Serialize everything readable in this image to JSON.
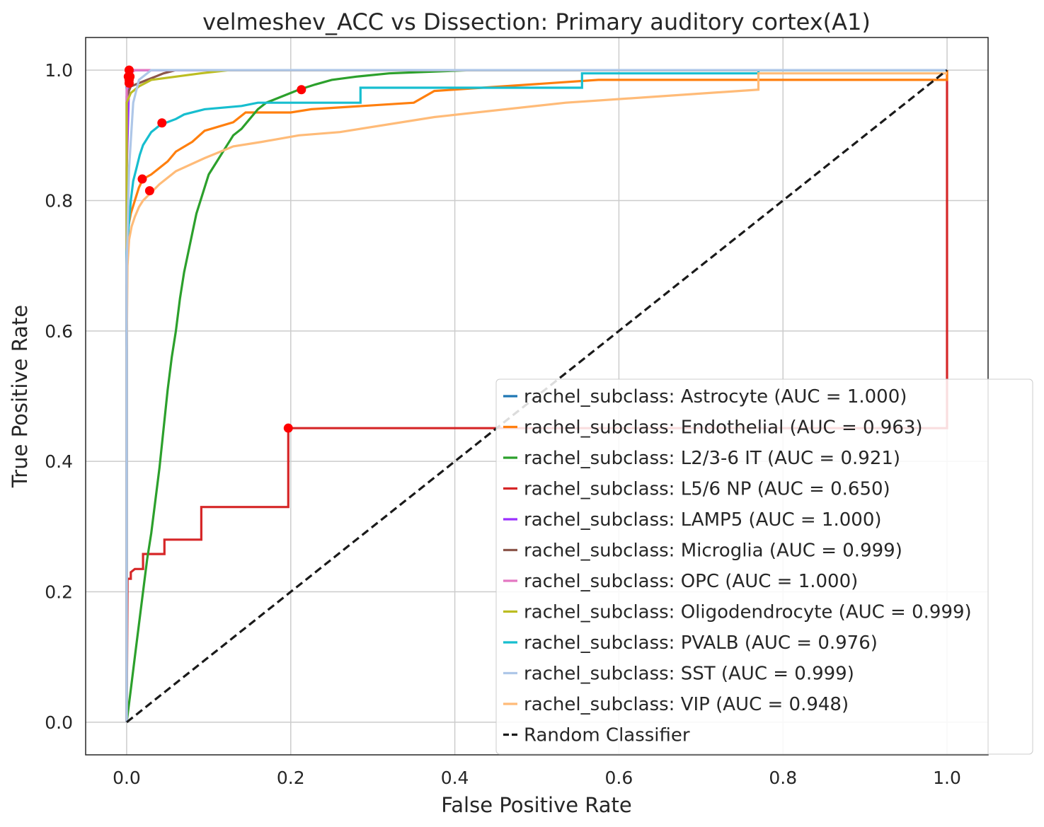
{
  "chart_data": {
    "type": "line",
    "title": "velmeshev_ACC vs Dissection: Primary auditory cortex(A1)",
    "xlabel": "False Positive Rate",
    "ylabel": "True Positive Rate",
    "xlim": [
      -0.05,
      1.05
    ],
    "ylim": [
      -0.05,
      1.05
    ],
    "xticks": [
      "0.0",
      "0.2",
      "0.4",
      "0.6",
      "0.8",
      "1.0"
    ],
    "yticks": [
      "0.0",
      "0.2",
      "0.4",
      "0.6",
      "0.8",
      "1.0"
    ],
    "grid": true,
    "legend_position": "lower-right",
    "series": [
      {
        "name": "rachel_subclass: Astrocyte (AUC = 1.000)",
        "color": "#1f77b4",
        "x": [
          0,
          0,
          0.003,
          1
        ],
        "y": [
          0,
          0.985,
          1.0,
          1.0
        ],
        "marker": [
          0.003,
          1.0
        ]
      },
      {
        "name": "rachel_subclass: Endothelial (AUC = 0.963)",
        "color": "#ff7f0e",
        "x": [
          0,
          0,
          0.001,
          0.002,
          0.005,
          0.01,
          0.015,
          0.02,
          0.03,
          0.04,
          0.05,
          0.06,
          0.08,
          0.095,
          0.13,
          0.145,
          0.2,
          0.225,
          0.225,
          0.35,
          0.35,
          0.375,
          0.375,
          0.575,
          0.575,
          1.0,
          1.0
        ],
        "y": [
          0,
          0.67,
          0.72,
          0.76,
          0.78,
          0.8,
          0.82,
          0.833,
          0.84,
          0.85,
          0.86,
          0.875,
          0.89,
          0.907,
          0.92,
          0.935,
          0.935,
          0.94,
          0.94,
          0.95,
          0.95,
          0.968,
          0.968,
          0.985,
          0.985,
          0.985,
          1.0
        ],
        "marker": [
          0.019,
          0.833
        ]
      },
      {
        "name": "rachel_subclass: L2/3-6 IT (AUC = 0.921)",
        "color": "#2ca02c",
        "x": [
          0,
          0.005,
          0.01,
          0.015,
          0.02,
          0.025,
          0.03,
          0.035,
          0.04,
          0.045,
          0.05,
          0.055,
          0.06,
          0.065,
          0.07,
          0.075,
          0.08,
          0.085,
          0.09,
          0.095,
          0.1,
          0.11,
          0.12,
          0.13,
          0.14,
          0.15,
          0.16,
          0.17,
          0.18,
          0.19,
          0.2,
          0.21,
          0.23,
          0.25,
          0.28,
          0.32,
          0.42,
          1.0
        ],
        "y": [
          0,
          0.05,
          0.1,
          0.15,
          0.2,
          0.25,
          0.29,
          0.34,
          0.39,
          0.45,
          0.51,
          0.56,
          0.6,
          0.65,
          0.69,
          0.72,
          0.75,
          0.78,
          0.8,
          0.82,
          0.84,
          0.86,
          0.88,
          0.9,
          0.91,
          0.925,
          0.94,
          0.95,
          0.955,
          0.96,
          0.965,
          0.97,
          0.978,
          0.985,
          0.99,
          0.995,
          1.0,
          1.0
        ],
        "marker": [
          0.213,
          0.97
        ]
      },
      {
        "name": "rachel_subclass: L5/6 NP (AUC = 0.650)",
        "color": "#d62728",
        "x": [
          0,
          0.001,
          0.001,
          0.005,
          0.005,
          0.01,
          0.02,
          0.02,
          0.046,
          0.046,
          0.091,
          0.091,
          0.197,
          0.197,
          1.0,
          1.0
        ],
        "y": [
          0,
          0.21,
          0.22,
          0.22,
          0.23,
          0.235,
          0.235,
          0.258,
          0.258,
          0.28,
          0.28,
          0.33,
          0.33,
          0.451,
          0.451,
          1.0
        ],
        "marker": [
          0.197,
          0.451
        ]
      },
      {
        "name": "rachel_subclass: LAMP5 (AUC = 1.000)",
        "color": "#9b30ff",
        "x": [
          0,
          0,
          0.003,
          0.005,
          1
        ],
        "y": [
          0,
          0.85,
          0.98,
          1.0,
          1.0
        ],
        "marker": [
          0.004,
          0.99
        ]
      },
      {
        "name": "rachel_subclass: Microglia (AUC = 0.999)",
        "color": "#8c564b",
        "x": [
          0,
          0,
          0.005,
          0.015,
          0.025,
          0.035,
          0.045,
          0.06,
          1
        ],
        "y": [
          0,
          0.96,
          0.975,
          0.98,
          0.985,
          0.99,
          0.995,
          1.0,
          1.0
        ],
        "marker": [
          0.003,
          0.98
        ]
      },
      {
        "name": "rachel_subclass: OPC (AUC = 1.000)",
        "color": "#e377c2",
        "x": [
          0,
          0,
          0.005,
          0.01,
          0.055,
          1
        ],
        "y": [
          0,
          0.97,
          0.995,
          1.0,
          1.0,
          1.0
        ],
        "marker": [
          0.004,
          0.99
        ]
      },
      {
        "name": "rachel_subclass: Oligodendrocyte (AUC = 0.999)",
        "color": "#bcbd22",
        "x": [
          0,
          0,
          0.005,
          0.015,
          0.03,
          0.06,
          0.09,
          0.125,
          1
        ],
        "y": [
          0,
          0.95,
          0.965,
          0.975,
          0.985,
          0.99,
          0.995,
          1.0,
          1.0
        ],
        "marker": [
          0.003,
          0.985
        ]
      },
      {
        "name": "rachel_subclass: PVALB (AUC = 0.976)",
        "color": "#17becf",
        "x": [
          0,
          0,
          0.003,
          0.005,
          0.008,
          0.012,
          0.016,
          0.02,
          0.025,
          0.03,
          0.035,
          0.04,
          0.045,
          0.06,
          0.07,
          0.095,
          0.14,
          0.16,
          0.285,
          0.285,
          0.555,
          0.555,
          0.77,
          0.77,
          1.0
        ],
        "y": [
          0,
          0.72,
          0.77,
          0.8,
          0.83,
          0.85,
          0.87,
          0.885,
          0.895,
          0.905,
          0.91,
          0.915,
          0.918,
          0.925,
          0.932,
          0.94,
          0.945,
          0.95,
          0.95,
          0.973,
          0.973,
          0.995,
          0.995,
          1.0,
          1.0
        ],
        "marker": [
          0.043,
          0.919
        ]
      },
      {
        "name": "rachel_subclass: SST (AUC = 0.999)",
        "color": "#aec7e8",
        "x": [
          0,
          0,
          0.003,
          0.008,
          0.015,
          0.03,
          1
        ],
        "y": [
          0,
          0.7,
          0.85,
          0.95,
          0.985,
          1.0,
          1.0
        ],
        "marker": [
          0.002,
          0.99
        ]
      },
      {
        "name": "rachel_subclass: VIP (AUC = 0.948)",
        "color": "#ffbb78",
        "x": [
          0,
          0,
          0.001,
          0.003,
          0.006,
          0.01,
          0.015,
          0.02,
          0.028,
          0.04,
          0.06,
          0.095,
          0.13,
          0.165,
          0.21,
          0.26,
          0.26,
          0.375,
          0.375,
          0.535,
          0.535,
          0.77,
          0.77,
          1.0
        ],
        "y": [
          0,
          0.57,
          0.7,
          0.74,
          0.76,
          0.775,
          0.79,
          0.8,
          0.81,
          0.825,
          0.845,
          0.865,
          0.883,
          0.89,
          0.9,
          0.905,
          0.905,
          0.928,
          0.928,
          0.95,
          0.95,
          0.97,
          0.995,
          0.995
        ],
        "marker": [
          0.028,
          0.815
        ]
      },
      {
        "name": "Random Classifier",
        "color": "#1a1a1a",
        "dashed": true,
        "x": [
          0,
          1
        ],
        "y": [
          0,
          1
        ]
      }
    ]
  }
}
